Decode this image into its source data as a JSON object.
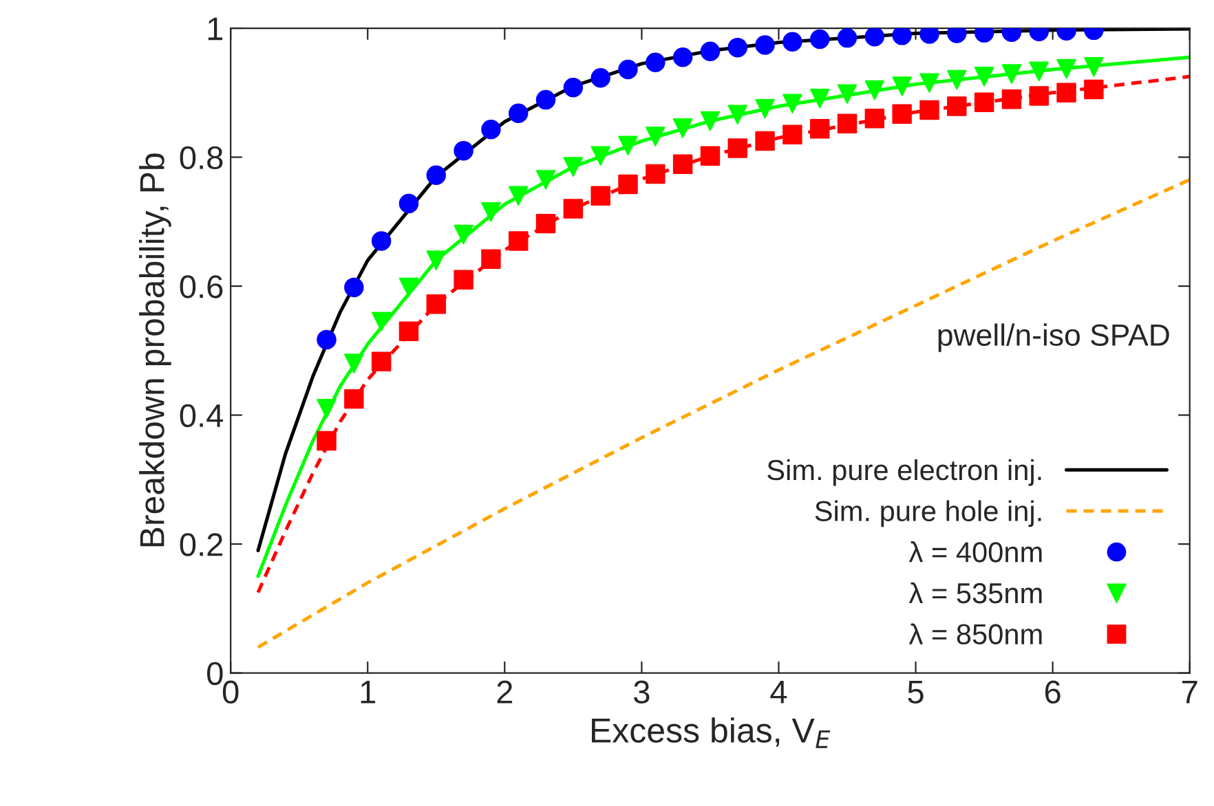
{
  "chart_data": {
    "type": "line",
    "xlabel": "Excess bias, V$_{E}$",
    "ylabel": "Breakdown probability, Pb",
    "annotations": [
      "pwell/n-iso SPAD"
    ],
    "xlim": [
      0,
      7
    ],
    "xticks": [
      0,
      1,
      2,
      3,
      4,
      5,
      6,
      7
    ],
    "ylim": [
      0,
      1
    ],
    "yticks": [
      0,
      0.2,
      0.4,
      0.6,
      0.8,
      1
    ],
    "grid": false,
    "legend": "bottom right",
    "series": [
      {
        "name": "Sim. pure electron inj.",
        "line_style": "solid",
        "marker": "none",
        "color": "#000000",
        "x": [
          0.2,
          0.4,
          0.6,
          0.8,
          1,
          1.5,
          2,
          2.5,
          3,
          3.5,
          4,
          5,
          6,
          7
        ],
        "values": [
          0.19,
          0.34,
          0.46,
          0.56,
          0.64,
          0.77,
          0.855,
          0.91,
          0.945,
          0.965,
          0.978,
          0.992,
          0.997,
          0.999
        ]
      },
      {
        "name": "Sim. pure hole inj.",
        "line_style": "dashed",
        "marker": "none",
        "color": "#ffa500",
        "x": [
          0.2,
          1,
          2,
          3,
          4,
          5,
          6,
          7
        ],
        "values": [
          0.04,
          0.14,
          0.255,
          0.365,
          0.47,
          0.57,
          0.67,
          0.765
        ]
      },
      {
        "name": "λ = 400nm",
        "type": "scatter",
        "marker": "circle",
        "color": "#0000ff",
        "x": [
          0.7,
          0.9,
          1.1,
          1.3,
          1.5,
          1.7,
          1.9,
          2.1,
          2.3,
          2.5,
          2.7,
          2.9,
          3.1,
          3.3,
          3.5,
          3.7,
          3.9,
          4.1,
          4.3,
          4.5,
          4.7,
          4.9,
          5.1,
          5.3,
          5.5,
          5.7,
          5.9,
          6.1,
          6.3
        ],
        "values": [
          0.517,
          0.598,
          0.67,
          0.728,
          0.772,
          0.81,
          0.843,
          0.868,
          0.889,
          0.908,
          0.923,
          0.936,
          0.947,
          0.955,
          0.964,
          0.97,
          0.974,
          0.979,
          0.983,
          0.985,
          0.987,
          0.989,
          0.991,
          0.992,
          0.993,
          0.994,
          0.995,
          0.996,
          0.997
        ]
      },
      {
        "name": "λ = 535nm",
        "type": "scatter",
        "marker": "triangle",
        "color": "#00ff00",
        "x": [
          0.7,
          0.9,
          1.1,
          1.3,
          1.5,
          1.7,
          1.9,
          2.1,
          2.3,
          2.5,
          2.7,
          2.9,
          3.1,
          3.3,
          3.5,
          3.7,
          3.9,
          4.1,
          4.3,
          4.5,
          4.7,
          4.9,
          5.1,
          5.3,
          5.5,
          5.7,
          5.9,
          6.1,
          6.3
        ],
        "values": [
          0.41,
          0.48,
          0.545,
          0.598,
          0.64,
          0.68,
          0.715,
          0.74,
          0.765,
          0.785,
          0.802,
          0.818,
          0.832,
          0.845,
          0.856,
          0.866,
          0.875,
          0.883,
          0.891,
          0.898,
          0.904,
          0.91,
          0.915,
          0.92,
          0.925,
          0.929,
          0.933,
          0.937,
          0.94
        ]
      },
      {
        "name": "λ = 850nm",
        "type": "scatter",
        "marker": "square",
        "color": "#ff0000",
        "x": [
          0.7,
          0.9,
          1.1,
          1.3,
          1.5,
          1.7,
          1.9,
          2.1,
          2.3,
          2.5,
          2.7,
          2.9,
          3.1,
          3.3,
          3.5,
          3.7,
          3.9,
          4.1,
          4.3,
          4.5,
          4.7,
          4.9,
          5.1,
          5.3,
          5.5,
          5.7,
          5.9,
          6.1,
          6.3
        ],
        "values": [
          0.36,
          0.425,
          0.483,
          0.53,
          0.572,
          0.61,
          0.642,
          0.67,
          0.697,
          0.72,
          0.74,
          0.758,
          0.774,
          0.789,
          0.802,
          0.814,
          0.825,
          0.835,
          0.844,
          0.852,
          0.86,
          0.867,
          0.873,
          0.879,
          0.885,
          0.89,
          0.895,
          0.9,
          0.905
        ]
      },
      {
        "line_style": "solid",
        "marker": "none",
        "color": "#00ff00",
        "x": [
          0.2,
          0.4,
          0.6,
          0.8,
          1,
          1.5,
          2,
          2.5,
          3,
          3.5,
          4,
          5,
          6,
          7
        ],
        "values": [
          0.15,
          0.26,
          0.36,
          0.445,
          0.51,
          0.64,
          0.727,
          0.785,
          0.825,
          0.856,
          0.879,
          0.913,
          0.936,
          0.955
        ]
      },
      {
        "line_style": "dashed",
        "marker": "none",
        "color": "#ff0000",
        "x": [
          0.2,
          0.4,
          0.6,
          0.8,
          1,
          1.5,
          2,
          2.5,
          3,
          3.5,
          4,
          5,
          6,
          7
        ],
        "values": [
          0.125,
          0.22,
          0.31,
          0.39,
          0.455,
          0.572,
          0.656,
          0.72,
          0.766,
          0.802,
          0.83,
          0.87,
          0.9,
          0.925
        ]
      }
    ]
  }
}
